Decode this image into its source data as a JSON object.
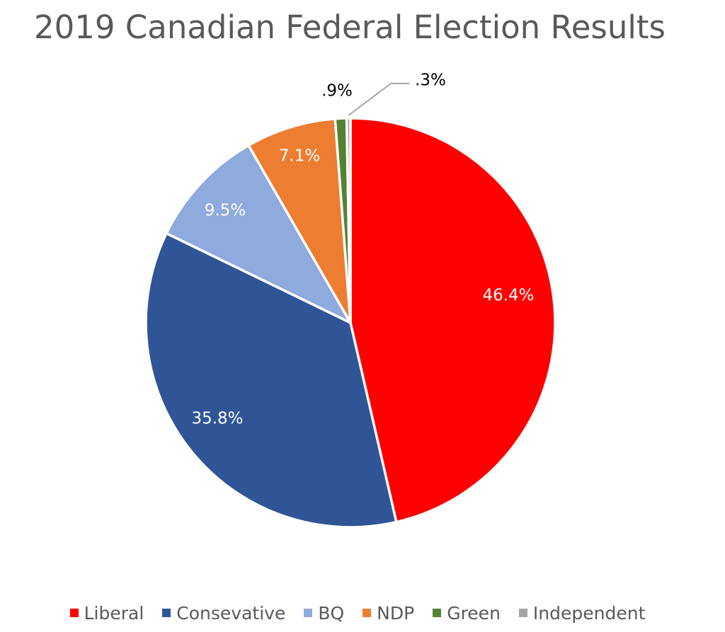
{
  "chart_data": {
    "type": "pie",
    "title": "2019 Canadian Federal Election Results",
    "slices": [
      {
        "name": "Liberal",
        "value": 46.4,
        "label": "46.4%",
        "color": "#ff0000",
        "label_color": "#ffffff"
      },
      {
        "name": "Consevative",
        "value": 35.8,
        "label": "35.8%",
        "color": "#2f5597",
        "label_color": "#ffffff"
      },
      {
        "name": "BQ",
        "value": 9.5,
        "label": "9.5%",
        "color": "#8faadc",
        "label_color": "#ffffff"
      },
      {
        "name": "NDP",
        "value": 7.1,
        "label": "7.1%",
        "color": "#ed7d31",
        "label_color": "#ffffff"
      },
      {
        "name": "Green",
        "value": 0.9,
        "label": ".9%",
        "color": "#548235",
        "label_color": "#000000"
      },
      {
        "name": "Independent",
        "value": 0.3,
        "label": ".3%",
        "color": "#a5a5a5",
        "label_color": "#000000"
      }
    ],
    "legend_position": "bottom"
  }
}
